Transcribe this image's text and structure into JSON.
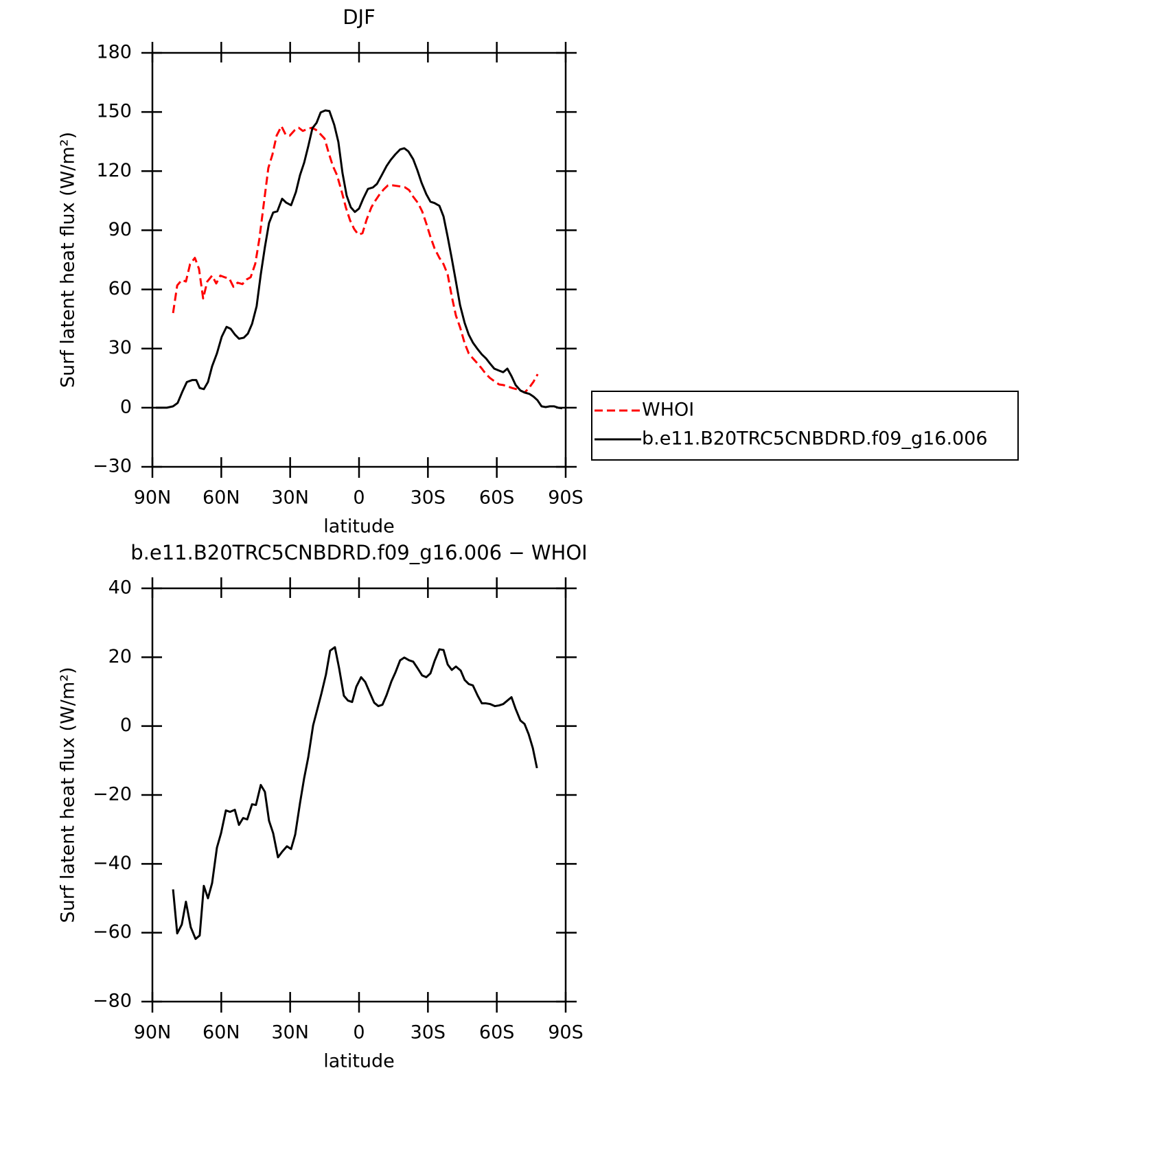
{
  "chart_data": [
    {
      "type": "line",
      "title": "DJF",
      "ylabel": "Surf latent heat flux (W/m²)",
      "xlabel": "latitude",
      "xlim": [
        90,
        -90
      ],
      "xticks": [
        {
          "value": 90,
          "label": "90N"
        },
        {
          "value": 60,
          "label": "60N"
        },
        {
          "value": 30,
          "label": "30N"
        },
        0,
        {
          "value": -30,
          "label": "30S"
        },
        {
          "value": -60,
          "label": "60S"
        },
        {
          "value": -90,
          "label": "90S"
        }
      ],
      "ylim": [
        -30,
        180
      ],
      "yticks": [
        {
          "value": -30,
          "label": "−30"
        },
        0,
        30,
        60,
        90,
        120,
        150,
        180
      ],
      "legend": "right",
      "series": [
        {
          "name": "WHOI",
          "color": "#ff0000",
          "line_style": "dashed",
          "x": [
            81,
            79.2,
            77.2,
            75.4,
            73.6,
            71.5,
            69.7,
            67.9,
            66.1,
            64,
            62.2,
            60.4,
            58.6,
            56.5,
            54.7,
            52.9,
            50.8,
            49,
            47.2,
            45.2,
            43.4,
            41.6,
            39.5,
            37.7,
            35.9,
            33.8,
            32,
            30.2,
            28.1,
            26.3,
            24.5,
            22.4,
            20.6,
            18.8,
            17,
            15,
            13.2,
            11.4,
            9.6,
            7.5,
            5.7,
            3.9,
            2.1,
            0.3,
            -1.5,
            -3.3,
            -5.4,
            -7.2,
            -9,
            -10.8,
            -12.6,
            -14.7,
            -16.4,
            -18.2,
            -20,
            -21.8,
            -23.6,
            -25.7,
            -27.5,
            -29.3,
            -31.1,
            -32.9,
            -35,
            -36.8,
            -38.6,
            -40.4,
            -42.2,
            -44,
            -46,
            -47.8,
            -49.6,
            -51.7,
            -53.5,
            -55.3,
            -57.1,
            -59.2,
            -61,
            -62.8,
            -64.6,
            -66.7,
            -68.5,
            -70.3,
            -72.1,
            -73.9,
            -76,
            -77.8
          ],
          "values": [
            48,
            62,
            64.8,
            64,
            72.8,
            76,
            70.4,
            55.4,
            64,
            67,
            63,
            67,
            66.2,
            65.5,
            61.3,
            63.4,
            62.7,
            65,
            66.2,
            73,
            85.7,
            102.4,
            121.6,
            128.5,
            138,
            142.8,
            138.6,
            138,
            140.7,
            142,
            140.4,
            141.4,
            142,
            141,
            139,
            136.5,
            129.2,
            122.6,
            118,
            109.4,
            101.4,
            95,
            90.6,
            87.8,
            88.5,
            95.4,
            101.7,
            105.2,
            108.3,
            110.8,
            112.8,
            112.8,
            112.5,
            112.2,
            111.8,
            110.4,
            107,
            103.8,
            99.6,
            93.4,
            86.7,
            80.8,
            76,
            72.8,
            67.6,
            56.4,
            46.7,
            40.8,
            32.7,
            27.5,
            25,
            22.3,
            19.8,
            17,
            15,
            13.2,
            11.8,
            11.5,
            10.8,
            10,
            9.4,
            8.7,
            7.7,
            9.8,
            13.2,
            17
          ]
        },
        {
          "name": "b.e11.B20TRC5CNBDRD.f09_g16.006",
          "color": "#000000",
          "line_style": "solid",
          "x": [
            88.5,
            83.7,
            81,
            79,
            77,
            75,
            72.7,
            70.9,
            69.4,
            67.6,
            65.8,
            64,
            61.9,
            59.8,
            57.7,
            55.9,
            54,
            52.3,
            50.2,
            48.4,
            46.6,
            44.6,
            42.8,
            41,
            39.2,
            37.4,
            35.6,
            33.5,
            31.7,
            29.6,
            27.5,
            25.7,
            23.9,
            22.1,
            20.3,
            18.5,
            16.7,
            14.7,
            12.9,
            10.8,
            9,
            7.2,
            5.4,
            3.6,
            1.8,
            0,
            -1.8,
            -3.9,
            -6,
            -7.8,
            -9.9,
            -12,
            -13.8,
            -15.8,
            -17.9,
            -19.7,
            -21.5,
            -23.6,
            -25.4,
            -27.2,
            -29.3,
            -31.1,
            -32.9,
            -35,
            -36.8,
            -38.6,
            -40.4,
            -42.2,
            -44,
            -46,
            -47.8,
            -49.6,
            -51.7,
            -53.5,
            -55.3,
            -57.1,
            -58.9,
            -61,
            -62.8,
            -64.6,
            -66.4,
            -68.2,
            -70.3,
            -72.1,
            -74.2,
            -76,
            -77.7,
            -79.5,
            -81.3,
            -83.1,
            -84.9,
            -86.7,
            -88.5
          ],
          "values": [
            0,
            0,
            0.7,
            2.4,
            8,
            13,
            14,
            14,
            10,
            9.4,
            13,
            21,
            27.5,
            36,
            41,
            40,
            37,
            35,
            35.5,
            37.6,
            42.5,
            51.5,
            67.6,
            81.5,
            93.7,
            99,
            99.6,
            106,
            104,
            102.7,
            109.4,
            118,
            124.3,
            132.7,
            141.8,
            144.5,
            149.8,
            150.8,
            150.5,
            143.5,
            134.8,
            119,
            107.6,
            101.7,
            99.3,
            101,
            106,
            111,
            111.7,
            113.5,
            118,
            122.6,
            125.7,
            128.5,
            131,
            131.6,
            130,
            126,
            120.5,
            114.2,
            108.3,
            104.5,
            103.8,
            102.4,
            97,
            86.7,
            75.6,
            64,
            52,
            43,
            37,
            33,
            29.6,
            27,
            25,
            22.3,
            19.8,
            18.8,
            18,
            19.8,
            16,
            11.5,
            8.7,
            7.7,
            7,
            5.6,
            3.8,
            0.7,
            0.3,
            0.7,
            0.7,
            0,
            -0.3
          ]
        }
      ]
    },
    {
      "type": "line",
      "title": "b.e11.B20TRC5CNBDRD.f09_g16.006 − WHOI",
      "ylabel": "Surf latent heat flux (W/m²)",
      "xlabel": "latitude",
      "xlim": [
        90,
        -90
      ],
      "xticks": [
        {
          "value": 90,
          "label": "90N"
        },
        {
          "value": 60,
          "label": "60N"
        },
        {
          "value": 30,
          "label": "30N"
        },
        0,
        {
          "value": -30,
          "label": "30S"
        },
        {
          "value": -60,
          "label": "60S"
        },
        {
          "value": -90,
          "label": "90S"
        }
      ],
      "ylim": [
        -80,
        40
      ],
      "yticks": [
        {
          "value": -80,
          "label": "−80"
        },
        {
          "value": -60,
          "label": "−60"
        },
        {
          "value": -40,
          "label": "−40"
        },
        {
          "value": -20,
          "label": "−20"
        },
        0,
        20,
        40
      ],
      "series": [
        {
          "color": "#000000",
          "line_style": "solid",
          "x": [
            81,
            79.2,
            77.2,
            75.4,
            73.3,
            71.2,
            69.4,
            67.6,
            65.8,
            64,
            61.9,
            60.1,
            58,
            56.2,
            54.1,
            52.3,
            50.5,
            48.7,
            46.6,
            44.9,
            42.8,
            41,
            39.2,
            37.4,
            35.3,
            33.5,
            31.4,
            29.6,
            27.8,
            25.7,
            23.9,
            22.1,
            20,
            18.2,
            16.4,
            14.4,
            12.6,
            10.5,
            8.7,
            6.6,
            4.8,
            3,
            1.2,
            -0.9,
            -2.7,
            -4.5,
            -6.6,
            -8.4,
            -10.2,
            -12,
            -14.1,
            -15.8,
            -17.9,
            -19.7,
            -21.8,
            -23.6,
            -25.4,
            -27.5,
            -29.3,
            -31.1,
            -32.9,
            -35,
            -36.8,
            -38.6,
            -40.4,
            -42.2,
            -44.3,
            -46,
            -47.8,
            -49.6,
            -51.7,
            -53.5,
            -55.3,
            -57.1,
            -59.2,
            -61,
            -62.8,
            -64.6,
            -66.4,
            -68.2,
            -70.3,
            -72.1,
            -73.9,
            -75.7,
            -77.5
          ],
          "values": [
            -47.4,
            -60.2,
            -57.6,
            -51,
            -58.4,
            -61.8,
            -60.8,
            -46.4,
            -50,
            -45.6,
            -35.3,
            -31.1,
            -24.5,
            -24.9,
            -24.3,
            -28.7,
            -26.7,
            -27.1,
            -22.7,
            -22.9,
            -17.1,
            -19.1,
            -27.5,
            -31.1,
            -38.1,
            -36.5,
            -34.9,
            -35.7,
            -31.5,
            -22.3,
            -15.1,
            -9,
            0.2,
            4.8,
            9.4,
            15,
            21.9,
            22.9,
            16.9,
            8.8,
            7.4,
            7,
            11.4,
            14.2,
            12.8,
            10,
            6.8,
            5.8,
            6.2,
            9,
            13,
            15.5,
            19.1,
            19.9,
            19.1,
            18.7,
            16.9,
            14.7,
            14.2,
            15.3,
            18.9,
            22.3,
            22.1,
            17.9,
            16.3,
            17.3,
            16.1,
            13.4,
            12.2,
            11.8,
            8.8,
            6.6,
            6.6,
            6.4,
            5.8,
            6,
            6.4,
            7.4,
            8.4,
            5,
            1.6,
            0.6,
            -2.4,
            -6.4,
            -12.2
          ]
        }
      ]
    }
  ]
}
